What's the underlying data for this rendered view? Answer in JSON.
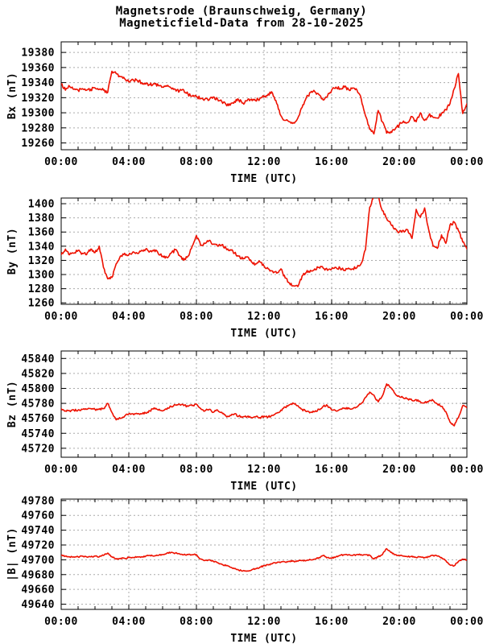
{
  "title": {
    "line1": "Magnetsrode (Braunschweig, Germany)",
    "line2": "Magneticfield-Data from 28-10-2025"
  },
  "colors": {
    "line": "#ee1100",
    "grid": "#aaaaaa",
    "axis": "#000000",
    "text": "#000000",
    "background": "#ffffff"
  },
  "time_axis": {
    "label": "TIME (UTC)",
    "major_tick_labels": [
      "00:00",
      "04:00",
      "08:00",
      "12:00",
      "16:00",
      "20:00",
      "00:00"
    ],
    "major_step_hours": 4,
    "minor_step_hours": 1,
    "range_hours": [
      0,
      24
    ]
  },
  "chart_data": [
    {
      "type": "line",
      "name": "bx",
      "ylabel": "Bx (nT)",
      "yticks": [
        19260,
        19280,
        19300,
        19320,
        19340,
        19360,
        19380
      ],
      "ylim": [
        19251,
        19394
      ],
      "noise_nT": 2.2,
      "x_start_hour": 0,
      "x_step_hours": 0.25,
      "values": [
        19338,
        19330,
        19335,
        19331,
        19330,
        19332,
        19330,
        19331,
        19333,
        19331,
        19330,
        19327,
        19355,
        19352,
        19348,
        19345,
        19341,
        19344,
        19343,
        19340,
        19338,
        19337,
        19339,
        19336,
        19334,
        19335,
        19333,
        19331,
        19329,
        19330,
        19325,
        19322,
        19321,
        19319,
        19318,
        19317,
        19321,
        19318,
        19315,
        19311,
        19310,
        19315,
        19317,
        19313,
        19316,
        19318,
        19316,
        19319,
        19321,
        19325,
        19326,
        19312,
        19296,
        19290,
        19288,
        19287,
        19293,
        19307,
        19320,
        19327,
        19328,
        19324,
        19317,
        19322,
        19330,
        19334,
        19332,
        19334,
        19331,
        19333,
        19330,
        19318,
        19296,
        19278,
        19272,
        19303,
        19288,
        19273,
        19275,
        19278,
        19284,
        19289,
        19287,
        19295,
        19288,
        19300,
        19290,
        19297,
        19294,
        19293,
        19299,
        19304,
        19312,
        19332,
        19352,
        19299,
        19312
      ]
    },
    {
      "type": "line",
      "name": "by",
      "ylabel": "By (nT)",
      "yticks": [
        1260,
        1280,
        1300,
        1320,
        1340,
        1360,
        1380,
        1400
      ],
      "ylim": [
        1258,
        1408
      ],
      "noise_nT": 2.2,
      "x_start_hour": 0,
      "x_step_hours": 0.25,
      "values": [
        1328,
        1336,
        1328,
        1330,
        1334,
        1330,
        1328,
        1336,
        1331,
        1340,
        1310,
        1294,
        1296,
        1315,
        1326,
        1330,
        1328,
        1332,
        1330,
        1334,
        1336,
        1333,
        1335,
        1329,
        1326,
        1324,
        1330,
        1335,
        1327,
        1320,
        1326,
        1340,
        1355,
        1341,
        1344,
        1348,
        1343,
        1340,
        1342,
        1337,
        1335,
        1330,
        1326,
        1322,
        1325,
        1318,
        1315,
        1318,
        1312,
        1308,
        1305,
        1302,
        1308,
        1295,
        1288,
        1284,
        1283,
        1298,
        1303,
        1306,
        1308,
        1310,
        1309,
        1306,
        1308,
        1310,
        1309,
        1306,
        1309,
        1308,
        1310,
        1316,
        1335,
        1395,
        1413,
        1409,
        1390,
        1379,
        1371,
        1365,
        1360,
        1362,
        1363,
        1351,
        1392,
        1381,
        1394,
        1362,
        1340,
        1337,
        1356,
        1344,
        1370,
        1374,
        1362,
        1346,
        1336
      ]
    },
    {
      "type": "line",
      "name": "bz",
      "ylabel": "Bz (nT)",
      "yticks": [
        45720,
        45740,
        45760,
        45780,
        45800,
        45820,
        45840
      ],
      "ylim": [
        45708,
        45850
      ],
      "noise_nT": 1.4,
      "x_start_hour": 0,
      "x_step_hours": 0.25,
      "values": [
        45773,
        45770,
        45770,
        45771,
        45771,
        45772,
        45772,
        45773,
        45772,
        45772,
        45773,
        45780,
        45768,
        45758,
        45760,
        45763,
        45766,
        45766,
        45766,
        45766,
        45767,
        45770,
        45774,
        45771,
        45770,
        45772,
        45776,
        45778,
        45779,
        45777,
        45776,
        45777,
        45779,
        45773,
        45770,
        45772,
        45768,
        45771,
        45768,
        45763,
        45764,
        45766,
        45763,
        45762,
        45762,
        45761,
        45762,
        45761,
        45763,
        45762,
        45764,
        45767,
        45771,
        45775,
        45778,
        45780,
        45777,
        45772,
        45769,
        45768,
        45769,
        45772,
        45776,
        45777,
        45771,
        45770,
        45772,
        45773,
        45774,
        45773,
        45775,
        45780,
        45788,
        45795,
        45791,
        45782,
        45790,
        45806,
        45801,
        45793,
        45789,
        45787,
        45786,
        45784,
        45785,
        45782,
        45781,
        45783,
        45784,
        45779,
        45776,
        45769,
        45755,
        45750,
        45761,
        45777,
        45774
      ]
    },
    {
      "type": "line",
      "name": "btotal",
      "ylabel": "|B| (nT)",
      "yticks": [
        49640,
        49660,
        49680,
        49700,
        49720,
        49740,
        49760,
        49780
      ],
      "ylim": [
        49633,
        49782
      ],
      "noise_nT": 0.9,
      "x_start_hour": 0,
      "x_step_hours": 0.25,
      "values": [
        49706,
        49705,
        49704,
        49704,
        49704,
        49705,
        49704,
        49704,
        49705,
        49704,
        49706,
        49709,
        49704,
        49701,
        49702,
        49702,
        49703,
        49703,
        49704,
        49704,
        49705,
        49706,
        49705,
        49706,
        49707,
        49709,
        49710,
        49709,
        49708,
        49707,
        49707,
        49707,
        49707,
        49701,
        49699,
        49700,
        49698,
        49696,
        49694,
        49692,
        49690,
        49688,
        49686,
        49685,
        49685,
        49686,
        49688,
        49690,
        49692,
        49693,
        49695,
        49696,
        49697,
        49697,
        49698,
        49698,
        49698,
        49699,
        49699,
        49700,
        49701,
        49703,
        49706,
        49703,
        49702,
        49704,
        49706,
        49707,
        49707,
        49706,
        49707,
        49707,
        49707,
        49706,
        49701,
        49704,
        49707,
        49715,
        49710,
        49707,
        49706,
        49705,
        49704,
        49705,
        49703,
        49704,
        49703,
        49704,
        49706,
        49705,
        49703,
        49699,
        49693,
        49692,
        49698,
        49701,
        49700
      ]
    }
  ]
}
